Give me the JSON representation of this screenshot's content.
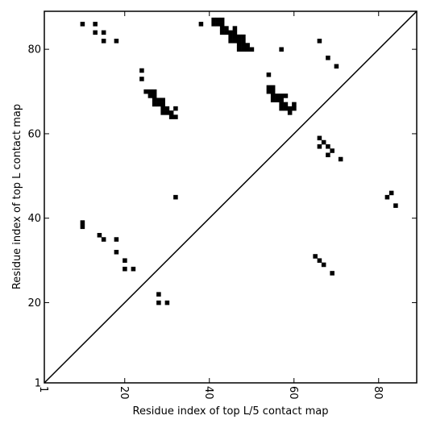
{
  "chart_data": {
    "type": "scatter",
    "title": "",
    "xlabel": "Residue index of top L/5 contact map",
    "ylabel": "Residue index of top L contact map",
    "xlim": [
      1,
      89
    ],
    "ylim": [
      1,
      89
    ],
    "x_ticks": [
      1,
      20,
      40,
      60,
      80
    ],
    "y_ticks": [
      1,
      20,
      40,
      60,
      80
    ],
    "x_tick_labels": [
      "1",
      "20",
      "40",
      "60",
      "80"
    ],
    "y_tick_labels": [
      "1",
      "20",
      "40",
      "60",
      "80"
    ],
    "x_tick_label_rotation_deg": -90,
    "grid": false,
    "diagonal_line": [
      [
        1,
        1
      ],
      [
        89,
        89
      ]
    ],
    "marker": "square",
    "marker_color": "#000000",
    "series": [
      {
        "points": [
          [
            10,
            86
          ],
          [
            13,
            86
          ],
          [
            13,
            84
          ],
          [
            15,
            84
          ],
          [
            15,
            82
          ],
          [
            18,
            82
          ],
          [
            24,
            75
          ],
          [
            24,
            73
          ],
          [
            25,
            70
          ],
          [
            26,
            70
          ],
          [
            27,
            70
          ],
          [
            26,
            69
          ],
          [
            27,
            69
          ],
          [
            27,
            68
          ],
          [
            28,
            68
          ],
          [
            29,
            68
          ],
          [
            27,
            67
          ],
          [
            28,
            67
          ],
          [
            29,
            67
          ],
          [
            29,
            66
          ],
          [
            30,
            66
          ],
          [
            32,
            66
          ],
          [
            29,
            65
          ],
          [
            30,
            65
          ],
          [
            31,
            65
          ],
          [
            31,
            64
          ],
          [
            32,
            64
          ],
          [
            32,
            45
          ],
          [
            38,
            86
          ],
          [
            41,
            87
          ],
          [
            42,
            87
          ],
          [
            43,
            87
          ],
          [
            41,
            86
          ],
          [
            42,
            86
          ],
          [
            43,
            86
          ],
          [
            43,
            85
          ],
          [
            44,
            85
          ],
          [
            46,
            85
          ],
          [
            43,
            84
          ],
          [
            44,
            84
          ],
          [
            45,
            84
          ],
          [
            46,
            84
          ],
          [
            45,
            83
          ],
          [
            46,
            83
          ],
          [
            47,
            83
          ],
          [
            48,
            83
          ],
          [
            45,
            82
          ],
          [
            46,
            82
          ],
          [
            47,
            82
          ],
          [
            48,
            82
          ],
          [
            47,
            81
          ],
          [
            48,
            81
          ],
          [
            49,
            81
          ],
          [
            47,
            80
          ],
          [
            48,
            80
          ],
          [
            49,
            80
          ],
          [
            50,
            80
          ],
          [
            57,
            80
          ],
          [
            54,
            74
          ],
          [
            54,
            71
          ],
          [
            55,
            71
          ],
          [
            54,
            70
          ],
          [
            55,
            70
          ],
          [
            55,
            69
          ],
          [
            56,
            69
          ],
          [
            57,
            69
          ],
          [
            58,
            69
          ],
          [
            55,
            68
          ],
          [
            56,
            68
          ],
          [
            57,
            68
          ],
          [
            57,
            67
          ],
          [
            58,
            67
          ],
          [
            60,
            67
          ],
          [
            57,
            66
          ],
          [
            58,
            66
          ],
          [
            59,
            66
          ],
          [
            60,
            66
          ],
          [
            59,
            65
          ],
          [
            66,
            82
          ],
          [
            68,
            78
          ],
          [
            70,
            76
          ],
          [
            66,
            59
          ],
          [
            67,
            58
          ],
          [
            66,
            57
          ],
          [
            68,
            57
          ],
          [
            69,
            56
          ],
          [
            68,
            55
          ],
          [
            71,
            54
          ],
          [
            82,
            45
          ],
          [
            83,
            46
          ],
          [
            84,
            43
          ],
          [
            10,
            39
          ],
          [
            10,
            38
          ],
          [
            14,
            36
          ],
          [
            15,
            35
          ],
          [
            18,
            35
          ],
          [
            18,
            32
          ],
          [
            20,
            30
          ],
          [
            20,
            28
          ],
          [
            22,
            28
          ],
          [
            28,
            22
          ],
          [
            28,
            20
          ],
          [
            30,
            20
          ],
          [
            65,
            31
          ],
          [
            66,
            30
          ],
          [
            67,
            29
          ],
          [
            69,
            27
          ]
        ]
      }
    ]
  }
}
